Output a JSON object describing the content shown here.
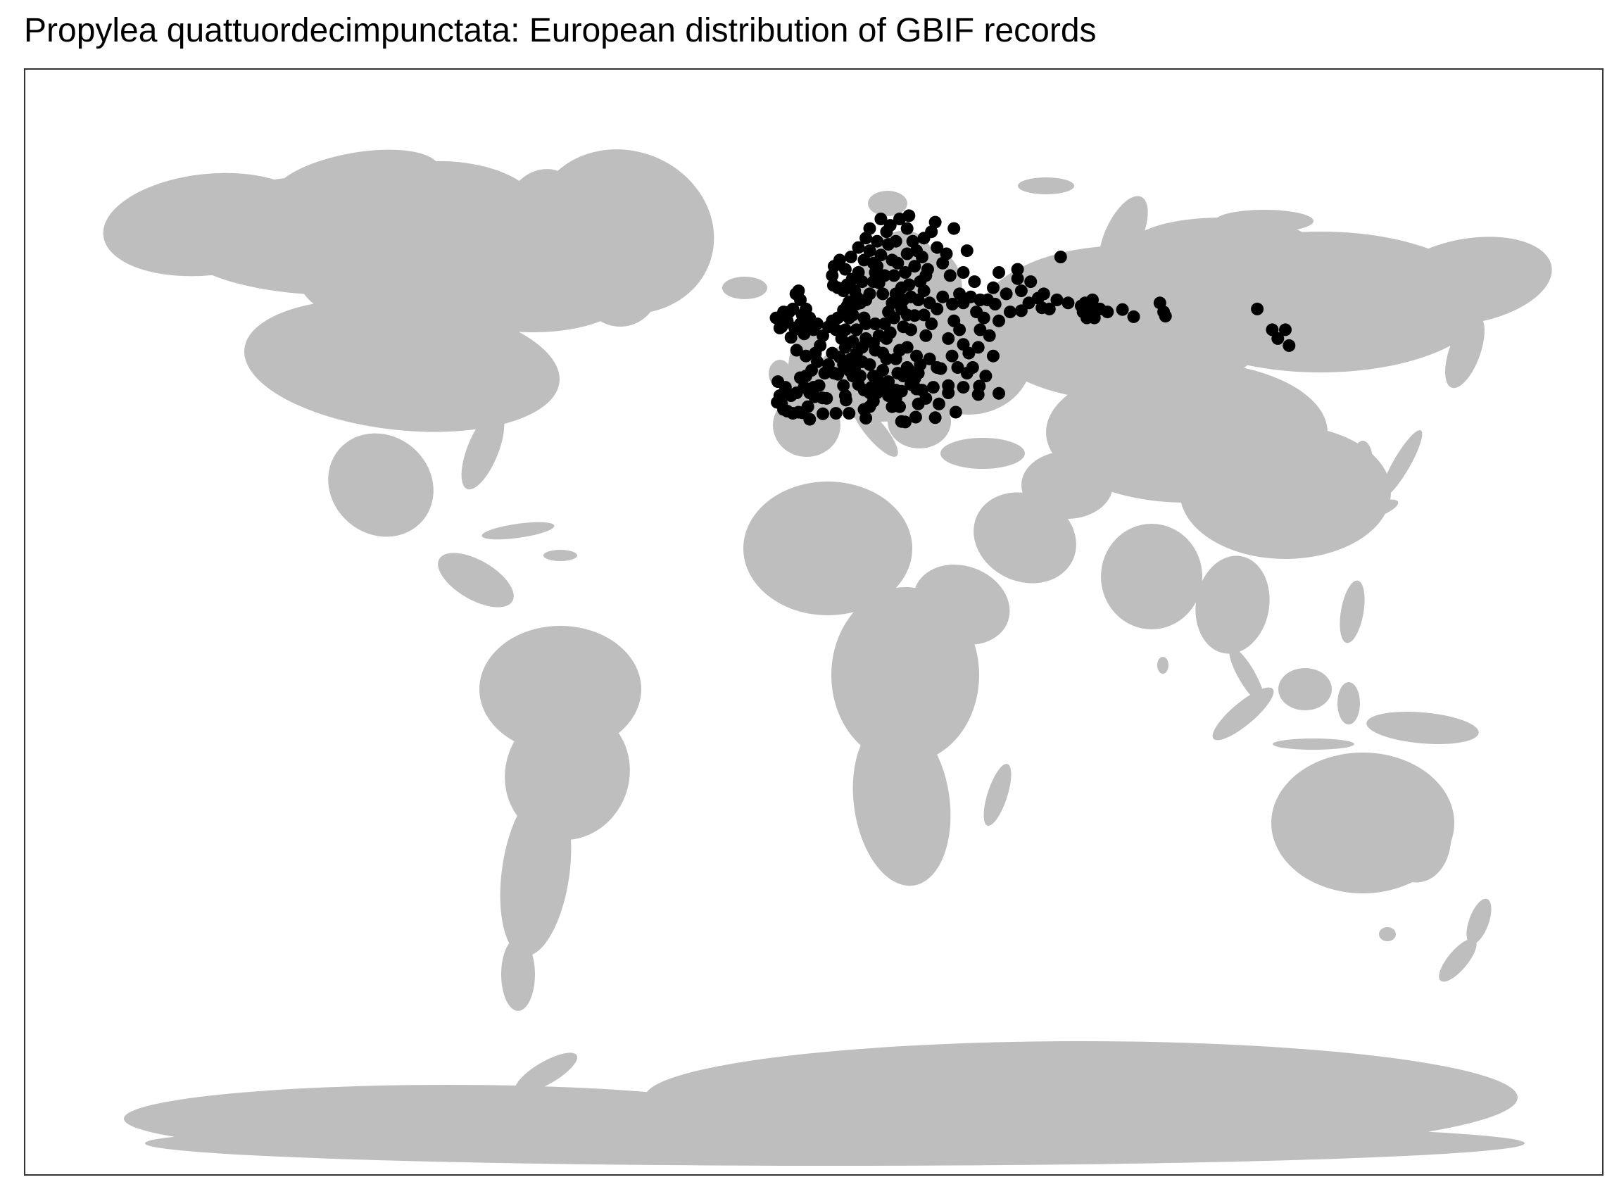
{
  "header": {
    "title": "Propylea quattuordecimpunctata: European distribution of GBIF records"
  },
  "map": {
    "land_color": "#bebebe",
    "record_color": "#000000",
    "border_color": "#333333"
  },
  "chart_data": {
    "type": "scatter",
    "title": "Propylea quattuordecimpunctata: European distribution of GBIF records",
    "xlabel": "",
    "ylabel": "",
    "xlim": [
      -180,
      180
    ],
    "ylim": [
      -90,
      90
    ],
    "grid": false,
    "legend": "none",
    "points_lonlat": [
      [
        -9.0,
        42.5
      ],
      [
        -8.5,
        40.0
      ],
      [
        -8.0,
        38.5
      ],
      [
        -6.5,
        37.2
      ],
      [
        -5.0,
        36.8
      ],
      [
        -3.5,
        37.0
      ],
      [
        -9.2,
        38.8
      ],
      [
        -7.0,
        41.5
      ],
      [
        -4.0,
        40.5
      ],
      [
        -2.0,
        41.5
      ],
      [
        0.5,
        41.5
      ],
      [
        2.0,
        41.8
      ],
      [
        -1.0,
        38.0
      ],
      [
        -3.0,
        43.2
      ],
      [
        -1.5,
        43.5
      ],
      [
        0.0,
        44.5
      ],
      [
        1.5,
        46.0
      ],
      [
        -1.5,
        47.0
      ],
      [
        -4.0,
        48.0
      ],
      [
        2.3,
        48.8
      ],
      [
        4.5,
        45.5
      ],
      [
        6.0,
        44.0
      ],
      [
        7.0,
        43.8
      ],
      [
        5.5,
        47.5
      ],
      [
        -5.5,
        50.2
      ],
      [
        -3.0,
        51.5
      ],
      [
        -1.5,
        52.5
      ],
      [
        0.5,
        51.5
      ],
      [
        -2.5,
        54.0
      ],
      [
        -3.0,
        56.5
      ],
      [
        -4.2,
        57.5
      ],
      [
        -6.5,
        53.0
      ],
      [
        -8.0,
        52.0
      ],
      [
        -7.5,
        54.5
      ],
      [
        3.0,
        50.5
      ],
      [
        4.5,
        52.0
      ],
      [
        5.5,
        53.0
      ],
      [
        6.5,
        51.5
      ],
      [
        8.0,
        50.0
      ],
      [
        9.0,
        48.5
      ],
      [
        7.5,
        46.8
      ],
      [
        8.5,
        45.5
      ],
      [
        10.0,
        44.5
      ],
      [
        11.0,
        43.5
      ],
      [
        12.5,
        42.0
      ],
      [
        14.0,
        41.0
      ],
      [
        15.5,
        40.5
      ],
      [
        16.5,
        39.0
      ],
      [
        15.5,
        38.0
      ],
      [
        14.0,
        37.5
      ],
      [
        9.0,
        40.0
      ],
      [
        9.2,
        39.2
      ],
      [
        10.5,
        46.5
      ],
      [
        12.0,
        47.5
      ],
      [
        13.5,
        46.0
      ],
      [
        15.5,
        45.5
      ],
      [
        16.5,
        43.5
      ],
      [
        18.0,
        42.5
      ],
      [
        19.5,
        41.5
      ],
      [
        20.5,
        40.0
      ],
      [
        21.5,
        38.0
      ],
      [
        22.5,
        39.5
      ],
      [
        23.5,
        38.0
      ],
      [
        24.0,
        40.8
      ],
      [
        22.5,
        41.0
      ],
      [
        26.5,
        42.0
      ],
      [
        28.0,
        41.2
      ],
      [
        27.5,
        43.0
      ],
      [
        24.5,
        43.5
      ],
      [
        25.5,
        45.0
      ],
      [
        22.5,
        46.5
      ],
      [
        20.0,
        46.5
      ],
      [
        19.0,
        47.5
      ],
      [
        17.0,
        48.0
      ],
      [
        14.5,
        50.0
      ],
      [
        12.0,
        51.5
      ],
      [
        10.0,
        53.5
      ],
      [
        9.5,
        55.5
      ],
      [
        12.0,
        55.8
      ],
      [
        14.0,
        53.5
      ],
      [
        17.0,
        52.5
      ],
      [
        19.5,
        52.5
      ],
      [
        21.0,
        51.0
      ],
      [
        22.0,
        53.5
      ],
      [
        24.0,
        55.0
      ],
      [
        25.5,
        54.0
      ],
      [
        24.5,
        56.5
      ],
      [
        24.0,
        58.5
      ],
      [
        26.0,
        59.0
      ],
      [
        29.0,
        59.5
      ],
      [
        30.5,
        60.5
      ],
      [
        25.0,
        61.0
      ],
      [
        22.0,
        60.5
      ],
      [
        23.0,
        62.5
      ],
      [
        25.5,
        64.0
      ],
      [
        27.0,
        66.0
      ],
      [
        25.5,
        68.0
      ],
      [
        23.5,
        69.5
      ],
      [
        26.0,
        70.0
      ],
      [
        18.5,
        69.5
      ],
      [
        15.5,
        68.0
      ],
      [
        14.5,
        66.5
      ],
      [
        12.5,
        65.0
      ],
      [
        10.5,
        63.5
      ],
      [
        6.0,
        62.0
      ],
      [
        5.5,
        60.5
      ],
      [
        7.0,
        58.5
      ],
      [
        9.5,
        59.0
      ],
      [
        10.8,
        59.9
      ],
      [
        11.5,
        58.0
      ],
      [
        13.0,
        56.0
      ],
      [
        15.5,
        57.5
      ],
      [
        16.5,
        59.5
      ],
      [
        18.0,
        59.3
      ],
      [
        17.0,
        61.0
      ],
      [
        16.5,
        62.5
      ],
      [
        18.5,
        63.8
      ],
      [
        20.5,
        65.5
      ],
      [
        14.0,
        63.0
      ],
      [
        12.5,
        61.0
      ],
      [
        19.0,
        57.5
      ],
      [
        28.0,
        47.0
      ],
      [
        30.5,
        50.5
      ],
      [
        31.5,
        46.5
      ],
      [
        33.5,
        45.0
      ],
      [
        34.5,
        44.8
      ],
      [
        36.5,
        50.0
      ],
      [
        32.0,
        52.5
      ],
      [
        30.0,
        54.0
      ],
      [
        27.5,
        53.9
      ],
      [
        31.5,
        56.0
      ],
      [
        33.5,
        55.0
      ],
      [
        35.0,
        57.0
      ],
      [
        37.6,
        55.8
      ],
      [
        39.5,
        57.5
      ],
      [
        40.5,
        56.0
      ],
      [
        38.0,
        53.0
      ],
      [
        39.5,
        51.5
      ],
      [
        40.5,
        49.0
      ],
      [
        42.0,
        47.5
      ],
      [
        43.0,
        45.0
      ],
      [
        41.5,
        44.0
      ],
      [
        39.0,
        45.0
      ],
      [
        37.5,
        47.0
      ],
      [
        44.5,
        48.5
      ],
      [
        45.0,
        51.5
      ],
      [
        44.0,
        54.5
      ],
      [
        42.5,
        57.0
      ],
      [
        43.5,
        59.5
      ],
      [
        40.5,
        61.0
      ],
      [
        41.5,
        64.5
      ],
      [
        37.0,
        60.5
      ],
      [
        35.0,
        62.5
      ],
      [
        33.5,
        65.0
      ],
      [
        32.0,
        67.5
      ],
      [
        33.0,
        69.0
      ],
      [
        38.0,
        68.0
      ],
      [
        36.0,
        64.0
      ],
      [
        49.0,
        55.8
      ],
      [
        47.0,
        56.5
      ],
      [
        50.0,
        53.0
      ],
      [
        53.0,
        54.5
      ],
      [
        56.0,
        54.7
      ],
      [
        58.0,
        56.0
      ],
      [
        60.5,
        56.8
      ],
      [
        56.0,
        58.0
      ],
      [
        61.5,
        55.2
      ],
      [
        48.5,
        58.5
      ],
      [
        50.0,
        61.0
      ],
      [
        55.0,
        60.0
      ],
      [
        52.0,
        57.5
      ],
      [
        63.5,
        55.0
      ],
      [
        65.5,
        56.5
      ],
      [
        55.0,
        61.5
      ],
      [
        58.5,
        59.5
      ],
      [
        62.0,
        57.5
      ],
      [
        45.0,
        56.5
      ],
      [
        46.0,
        53.5
      ],
      [
        47.5,
        50.5
      ],
      [
        48.5,
        47.0
      ],
      [
        34.0,
        38.5
      ],
      [
        36.5,
        40.5
      ],
      [
        30.5,
        39.5
      ],
      [
        28.5,
        38.5
      ],
      [
        29.5,
        41.0
      ],
      [
        32.5,
        41.5
      ],
      [
        40.5,
        41.5
      ],
      [
        44.8,
        41.7
      ],
      [
        44.5,
        40.2
      ],
      [
        50.0,
        40.4
      ],
      [
        46.5,
        43.5
      ],
      [
        36.5,
        41.8
      ],
      [
        33.0,
        36.0
      ],
      [
        27.8,
        36.1
      ],
      [
        25.0,
        35.2
      ],
      [
        24.0,
        35.3
      ],
      [
        14.5,
        35.9
      ],
      [
        6.5,
        36.8
      ],
      [
        3.0,
        36.7
      ],
      [
        -0.5,
        35.7
      ],
      [
        10.0,
        36.8
      ],
      [
        38.5,
        37.0
      ],
      [
        66.5,
        63.5
      ],
      [
        68.5,
        56.0
      ],
      [
        72.0,
        55.5
      ],
      [
        72.5,
        54.5
      ],
      [
        73.0,
        56.0
      ],
      [
        74.5,
        55.0
      ],
      [
        73.5,
        53.5
      ],
      [
        75.0,
        56.5
      ],
      [
        75.5,
        53.5
      ],
      [
        77.0,
        55.0
      ],
      [
        79.0,
        54.5
      ],
      [
        83.0,
        54.9
      ],
      [
        86.0,
        53.7
      ],
      [
        93.0,
        56.0
      ],
      [
        94.0,
        54.5
      ],
      [
        94.5,
        53.8
      ],
      [
        119.0,
        55.0
      ],
      [
        123.0,
        51.5
      ],
      [
        124.5,
        50.0
      ],
      [
        127.5,
        48.8
      ],
      [
        126.5,
        51.5
      ],
      [
        -2.0,
        50.8
      ],
      [
        1.0,
        47.5
      ],
      [
        3.5,
        44.0
      ],
      [
        -0.5,
        40.5
      ],
      [
        -5.5,
        40.0
      ],
      [
        -7.5,
        37.5
      ],
      [
        -2.5,
        36.9
      ],
      [
        0.8,
        39.8
      ],
      [
        4.0,
        39.5
      ],
      [
        2.9,
        39.6
      ],
      [
        8.5,
        41.8
      ],
      [
        11.5,
        45.0
      ],
      [
        13.0,
        43.5
      ],
      [
        16.0,
        41.5
      ],
      [
        17.5,
        40.5
      ],
      [
        19.0,
        44.5
      ],
      [
        20.5,
        42.5
      ],
      [
        23.0,
        44.0
      ],
      [
        26.0,
        44.5
      ],
      [
        28.5,
        44.0
      ],
      [
        29.0,
        45.5
      ],
      [
        23.5,
        48.0
      ],
      [
        25.5,
        48.5
      ],
      [
        26.5,
        51.5
      ],
      [
        24.5,
        52.0
      ],
      [
        20.0,
        50.0
      ],
      [
        18.0,
        50.5
      ],
      [
        16.5,
        49.2
      ],
      [
        13.5,
        48.5
      ],
      [
        11.0,
        49.5
      ],
      [
        9.0,
        51.5
      ],
      [
        7.0,
        53.5
      ],
      [
        8.5,
        54.8
      ],
      [
        11.0,
        54.0
      ],
      [
        14.5,
        52.5
      ],
      [
        20.5,
        54.5
      ],
      [
        21.5,
        56.0
      ],
      [
        22.5,
        57.5
      ],
      [
        26.5,
        57.0
      ],
      [
        28.5,
        56.5
      ],
      [
        30.0,
        58.0
      ],
      [
        31.0,
        61.5
      ],
      [
        29.5,
        63.5
      ],
      [
        28.0,
        64.5
      ],
      [
        30.0,
        66.5
      ],
      [
        27.5,
        62.0
      ],
      [
        21.5,
        63.0
      ],
      [
        22.5,
        66.0
      ],
      [
        21.0,
        68.5
      ],
      [
        20.0,
        67.5
      ],
      [
        17.5,
        66.0
      ],
      [
        15.5,
        64.5
      ],
      [
        17.5,
        62.0
      ],
      [
        19.5,
        60.5
      ],
      [
        13.5,
        59.5
      ],
      [
        9.0,
        61.5
      ],
      [
        7.5,
        63.0
      ],
      [
        8.5,
        58.0
      ],
      [
        5.8,
        58.9
      ],
      [
        10.0,
        56.2
      ],
      [
        12.0,
        57.0
      ],
      [
        14.5,
        56.5
      ],
      [
        -3.5,
        58.0
      ],
      [
        -5.0,
        55.0
      ],
      [
        -1.5,
        55.0
      ],
      [
        -3.0,
        52.5
      ],
      [
        -0.5,
        53.5
      ],
      [
        1.5,
        52.5
      ],
      [
        -4.5,
        51.8
      ],
      [
        -6.0,
        54.5
      ],
      [
        -9.5,
        53.5
      ],
      [
        -8.5,
        51.8
      ],
      [
        -6.5,
        52.8
      ]
    ]
  }
}
